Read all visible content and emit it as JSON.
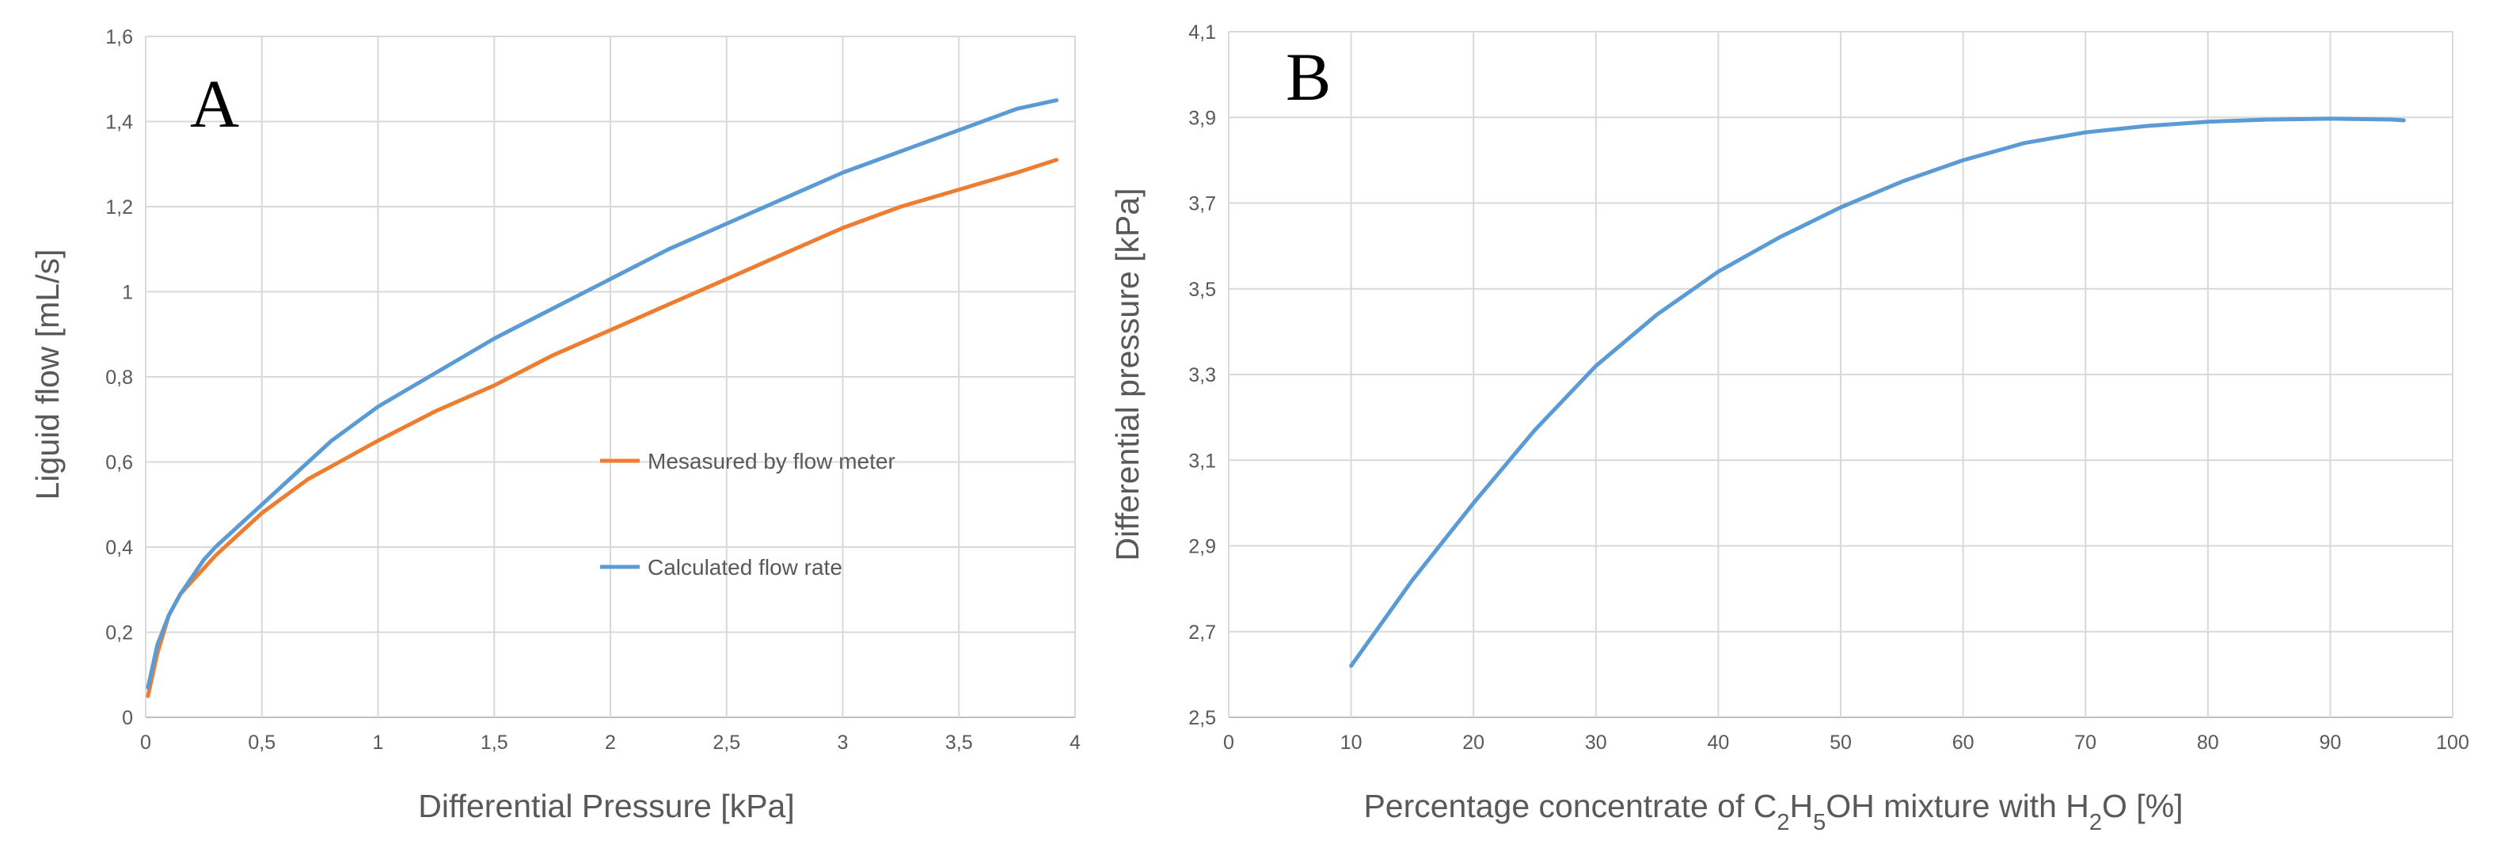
{
  "colors": {
    "orange": "#ED7D31",
    "blue": "#5B9BD5",
    "grid": "#D9D9D9",
    "text": "#595959"
  },
  "chart_data": [
    {
      "type": "line",
      "panel_label": "A",
      "title": "",
      "xlabel": "Differential Pressure [kPa]",
      "ylabel": "Liguid flow [mL/s]",
      "xlim": [
        0,
        4
      ],
      "ylim": [
        0,
        1.6
      ],
      "x_ticks": [
        0,
        0.5,
        1,
        1.5,
        2,
        2.5,
        3,
        3.5,
        4
      ],
      "x_tick_labels": [
        "0",
        "0,5",
        "1",
        "1,5",
        "2",
        "2,5",
        "3",
        "3,5",
        "4"
      ],
      "y_ticks": [
        0,
        0.2,
        0.4,
        0.6,
        0.8,
        1,
        1.2,
        1.4,
        1.6
      ],
      "y_tick_labels": [
        "0",
        "0,2",
        "0,4",
        "0,6",
        "0,8",
        "1",
        "1,2",
        "1,4",
        "1,6"
      ],
      "grid": true,
      "legend": "center-right",
      "series": [
        {
          "name": "Mesasured by flow meter",
          "color": "#ED7D31",
          "x": [
            0.01,
            0.05,
            0.1,
            0.15,
            0.2,
            0.25,
            0.3,
            0.4,
            0.5,
            0.6,
            0.7,
            0.8,
            1.0,
            1.25,
            1.5,
            1.75,
            2.0,
            2.25,
            2.5,
            2.75,
            3.0,
            3.25,
            3.5,
            3.75,
            3.92
          ],
          "values": [
            0.05,
            0.15,
            0.24,
            0.29,
            0.32,
            0.35,
            0.38,
            0.43,
            0.48,
            0.52,
            0.56,
            0.59,
            0.65,
            0.72,
            0.78,
            0.85,
            0.91,
            0.97,
            1.03,
            1.09,
            1.15,
            1.2,
            1.24,
            1.28,
            1.31
          ]
        },
        {
          "name": "Calculated flow rate",
          "color": "#5B9BD5",
          "x": [
            0.01,
            0.05,
            0.1,
            0.15,
            0.2,
            0.25,
            0.3,
            0.4,
            0.5,
            0.6,
            0.7,
            0.8,
            1.0,
            1.25,
            1.5,
            1.75,
            2.0,
            2.25,
            2.5,
            2.75,
            3.0,
            3.25,
            3.5,
            3.75,
            3.92
          ],
          "values": [
            0.07,
            0.17,
            0.24,
            0.29,
            0.33,
            0.37,
            0.4,
            0.45,
            0.5,
            0.55,
            0.6,
            0.65,
            0.73,
            0.81,
            0.89,
            0.96,
            1.03,
            1.1,
            1.16,
            1.22,
            1.28,
            1.33,
            1.38,
            1.43,
            1.45
          ]
        }
      ]
    },
    {
      "type": "line",
      "panel_label": "B",
      "title": "",
      "xlabel": "Percentage concentrate of C2H5OH mixture with H2O [%]",
      "xlabel_parts": [
        "Percentage concentrate of C",
        "2",
        "H",
        "5",
        "OH mixture with H",
        "2",
        "O [%]"
      ],
      "ylabel": "Differential pressure [kPa]",
      "xlim": [
        0,
        100
      ],
      "ylim": [
        2.5,
        4.1
      ],
      "x_ticks": [
        0,
        10,
        20,
        30,
        40,
        50,
        60,
        70,
        80,
        90,
        100
      ],
      "x_tick_labels": [
        "0",
        "10",
        "20",
        "30",
        "40",
        "50",
        "60",
        "70",
        "80",
        "90",
        "100"
      ],
      "y_ticks": [
        2.5,
        2.7,
        2.9,
        3.1,
        3.3,
        3.5,
        3.7,
        3.9,
        4.1
      ],
      "y_tick_labels": [
        "2,5",
        "2,7",
        "2,9",
        "3,1",
        "3,3",
        "3,5",
        "3,7",
        "3,9",
        "4,1"
      ],
      "grid": true,
      "series": [
        {
          "name": "Differential pressure",
          "color": "#5B9BD5",
          "x": [
            10,
            15,
            20,
            25,
            30,
            35,
            40,
            45,
            50,
            55,
            60,
            65,
            70,
            75,
            80,
            85,
            90,
            95,
            96
          ],
          "values": [
            2.62,
            2.82,
            3.0,
            3.17,
            3.32,
            3.44,
            3.54,
            3.62,
            3.69,
            3.75,
            3.8,
            3.84,
            3.865,
            3.88,
            3.89,
            3.895,
            3.897,
            3.895,
            3.893
          ]
        }
      ]
    }
  ]
}
